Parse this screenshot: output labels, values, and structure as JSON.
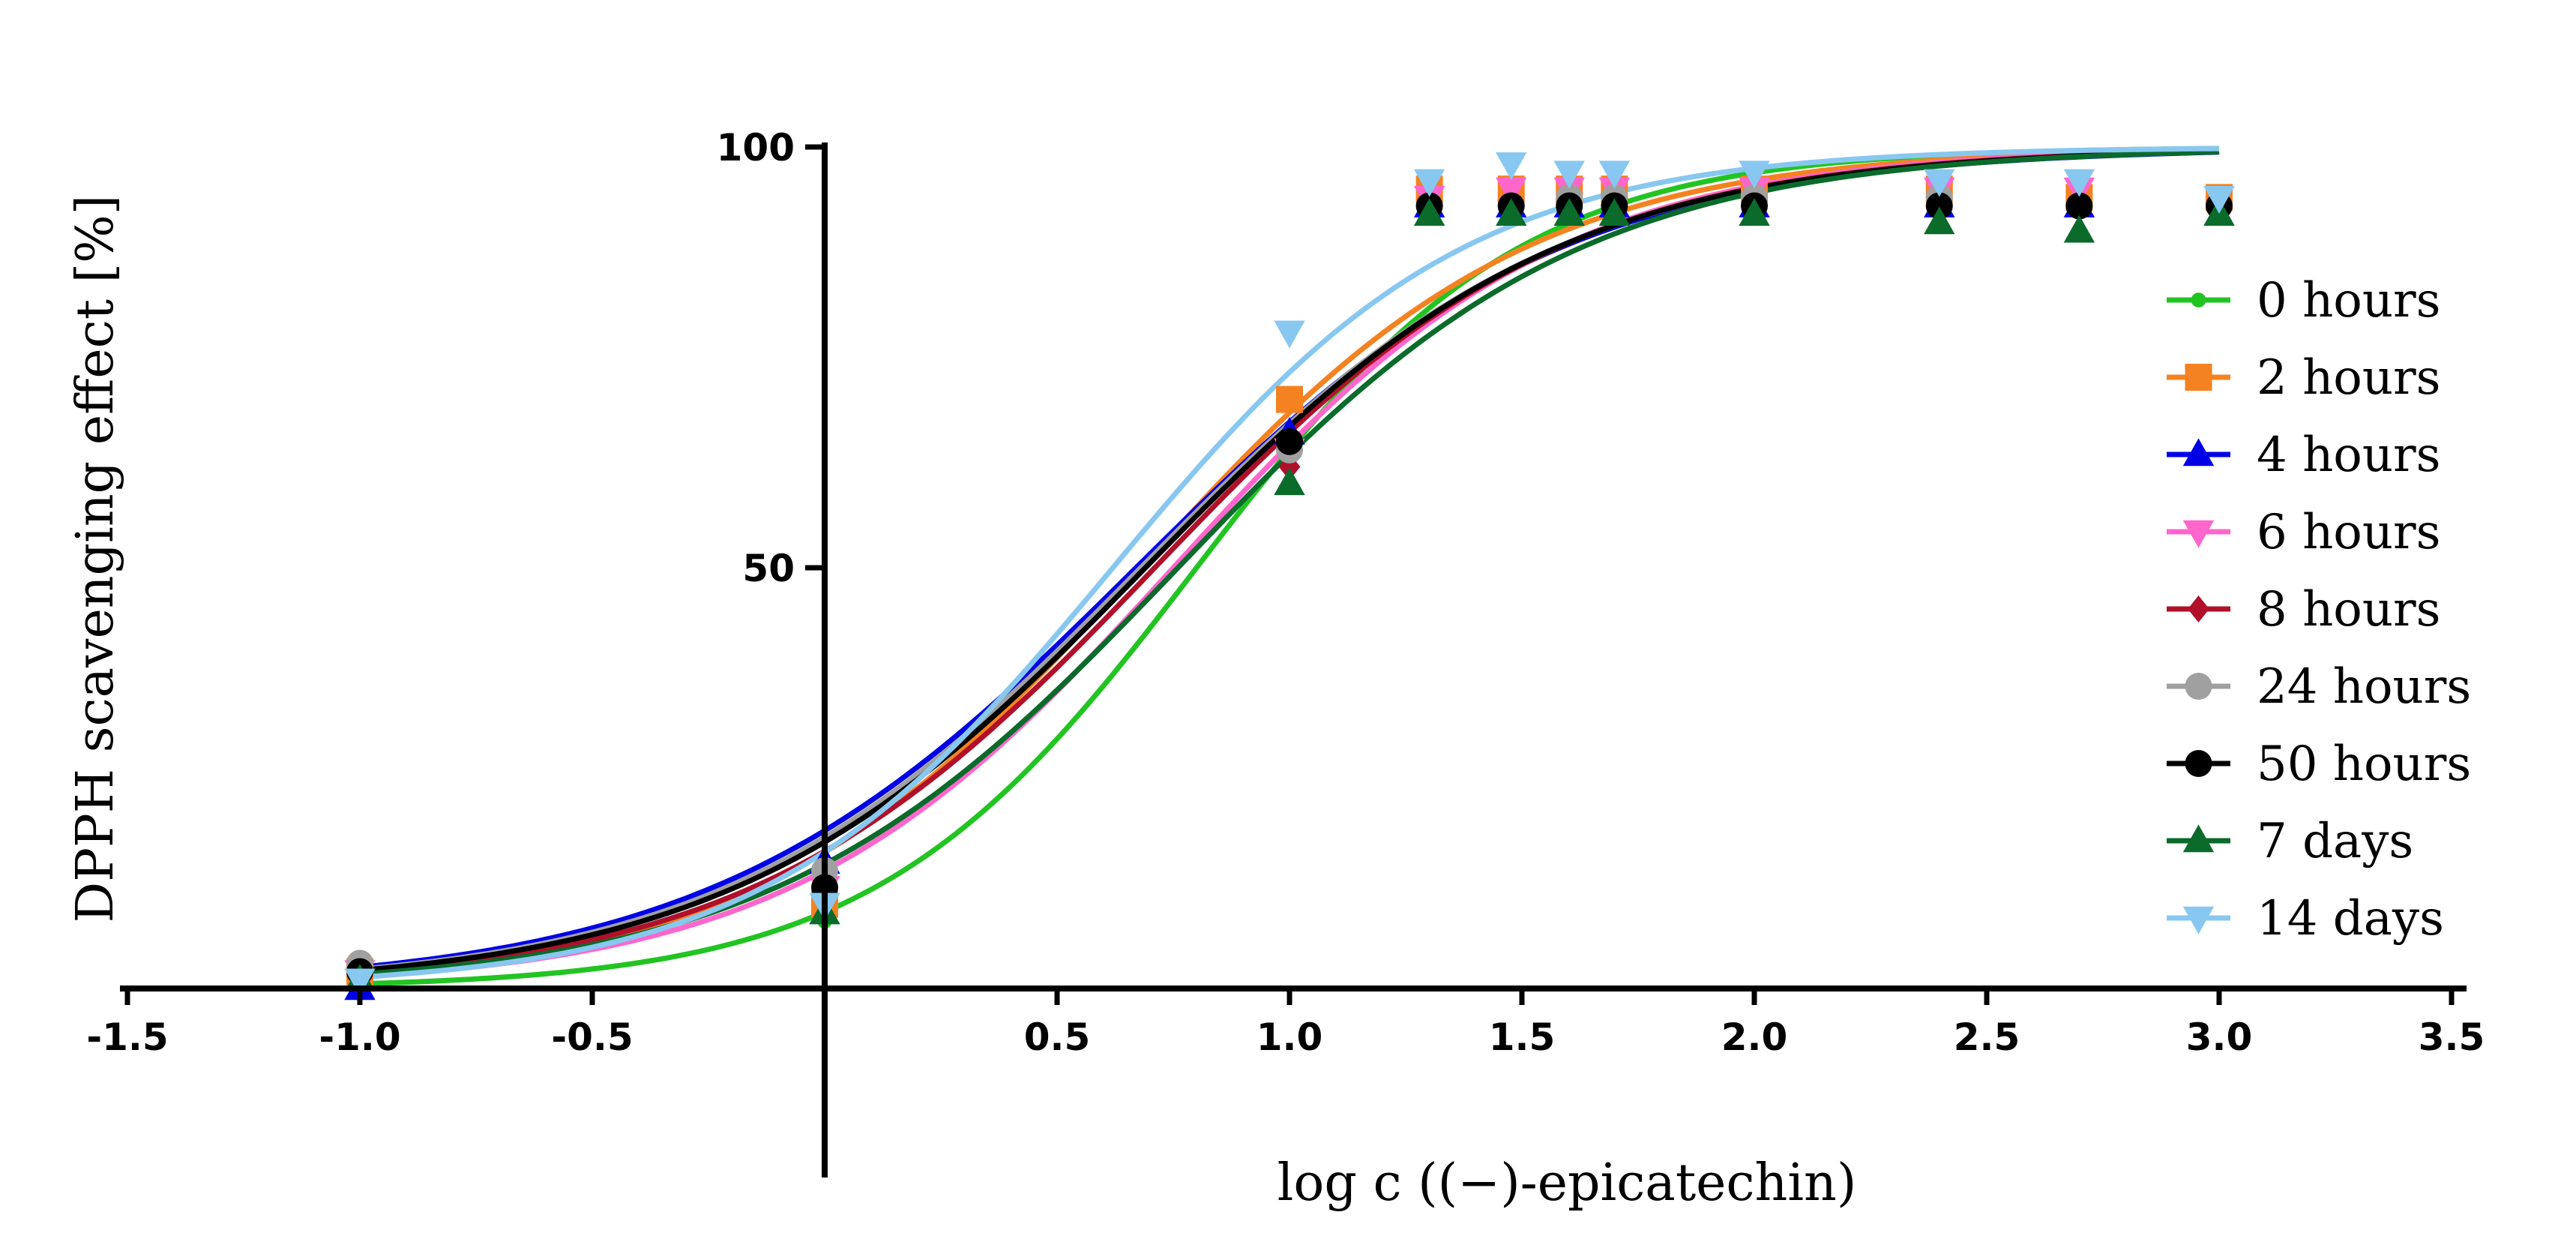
{
  "chart_data": {
    "type": "scatter",
    "title": "",
    "xlabel": "log c ((−)-epicatechin)",
    "ylabel": "DPPH scavenging effect [%]",
    "xlim": [
      -1.5,
      3.5
    ],
    "ylim": [
      0,
      100
    ],
    "xticks": [
      "-1.5",
      "-1.0",
      "-0.5",
      "0.5",
      "1.0",
      "1.5",
      "2.0",
      "2.5",
      "3.0",
      "3.5"
    ],
    "xtick_values": [
      -1.5,
      -1.0,
      -0.5,
      0.5,
      1.0,
      1.5,
      2.0,
      2.5,
      3.0,
      3.5
    ],
    "yticks": [
      "50",
      "100"
    ],
    "ytick_values": [
      50,
      100
    ],
    "legend_position": "right",
    "x": [
      -1.0,
      0.0,
      1.0,
      1.301,
      1.477,
      1.602,
      1.699,
      2.0,
      2.398,
      2.699,
      3.0
    ],
    "series": [
      {
        "name": "0 hours",
        "color": "#22c422",
        "marker": "small-circle",
        "logec50": 0.8,
        "hill": 1.25,
        "values": [
          1,
          8,
          66,
          94,
          94,
          94,
          94,
          94,
          94,
          93,
          93
        ]
      },
      {
        "name": "2 hours",
        "color": "#f58220",
        "marker": "square",
        "logec50": 0.68,
        "hill": 1.05,
        "values": [
          2,
          10,
          70,
          95,
          95,
          95,
          95,
          95,
          95,
          94,
          94
        ]
      },
      {
        "name": "4 hours",
        "color": "#0000e6",
        "marker": "triangle-up",
        "logec50": 0.67,
        "hill": 0.95,
        "values": [
          0,
          15,
          66,
          93,
          93,
          93,
          93,
          93,
          93,
          93,
          92
        ]
      },
      {
        "name": "6 hours",
        "color": "#ff66cc",
        "marker": "triangle-down",
        "logec50": 0.75,
        "hill": 1.05,
        "values": [
          2,
          12,
          64,
          94,
          95,
          95,
          95,
          95,
          95,
          95,
          94
        ]
      },
      {
        "name": "8 hours",
        "color": "#b0102a",
        "marker": "diamond",
        "logec50": 0.71,
        "hill": 1.0,
        "values": [
          2,
          11,
          62,
          93,
          93,
          93,
          93,
          93,
          93,
          93,
          93
        ]
      },
      {
        "name": "24 hours",
        "color": "#a0a0a0",
        "marker": "circle",
        "logec50": 0.68,
        "hill": 0.97,
        "values": [
          3,
          14,
          64,
          93,
          93,
          94,
          94,
          94,
          94,
          93,
          93
        ]
      },
      {
        "name": "50 hours",
        "color": "#000000",
        "marker": "circle",
        "logec50": 0.69,
        "hill": 0.98,
        "values": [
          2,
          12,
          65,
          93,
          93,
          93,
          93,
          93,
          93,
          93,
          93
        ]
      },
      {
        "name": "7 days",
        "color": "#0a6b2a",
        "marker": "triangle-up",
        "logec50": 0.76,
        "hill": 1.0,
        "values": [
          1,
          9,
          60,
          92,
          92,
          92,
          92,
          92,
          91,
          90,
          92
        ]
      },
      {
        "name": "14 days",
        "color": "#88c8f0",
        "marker": "triangle-down",
        "logec50": 0.62,
        "hill": 1.15,
        "values": [
          1,
          10,
          78,
          96,
          98,
          97,
          97,
          97,
          96,
          96,
          94
        ]
      }
    ]
  }
}
